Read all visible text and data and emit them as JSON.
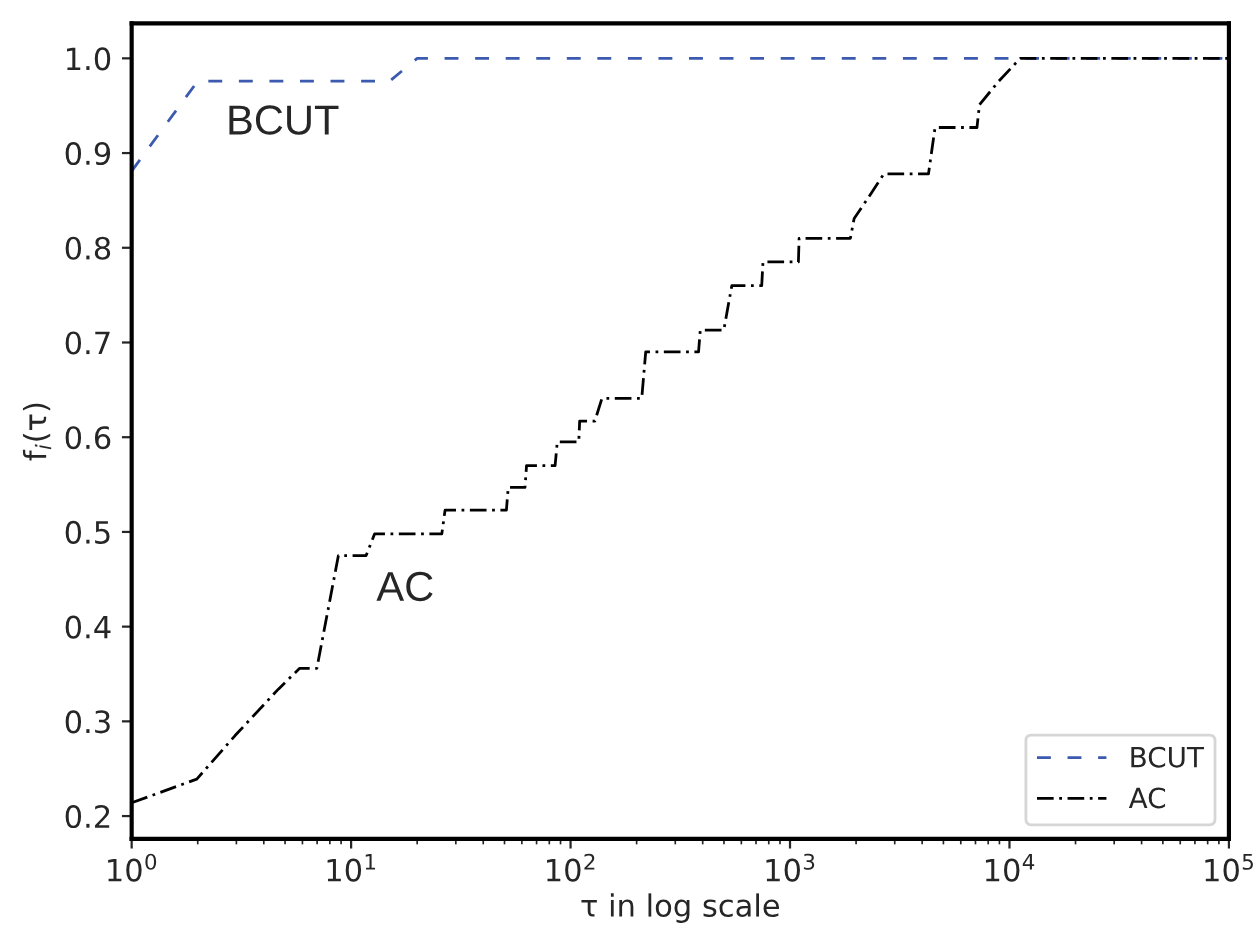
{
  "chart_data": {
    "type": "line",
    "xlabel": "τ in log scale",
    "ylabel": "f$_{i}$(τ)",
    "log": "x",
    "xlim": [
      1,
      100000
    ],
    "ylim": [
      0.176,
      1.037
    ],
    "xticks": [
      {
        "value": 1,
        "label": "10$^{0}$"
      },
      {
        "value": 10,
        "label": "10$^{1}$"
      },
      {
        "value": 100,
        "label": "10$^{2}$"
      },
      {
        "value": 1000,
        "label": "10$^{3}$"
      },
      {
        "value": 10000,
        "label": "10$^{4}$"
      },
      {
        "value": 100000,
        "label": "10$^{5}$"
      }
    ],
    "yticks": [
      0.2,
      0.3,
      0.4,
      0.5,
      0.6,
      0.7,
      0.8,
      0.9,
      {
        "value": 1,
        "label": "1.0"
      }
    ],
    "legend": "bottom right",
    "grid": false,
    "marker": "none",
    "series": [
      {
        "name": "BCUT",
        "color": "#3b5ab0",
        "line_style": "dashed",
        "x": [
          1,
          2,
          15,
          20,
          100000
        ],
        "values": [
          0.881,
          0.976,
          0.976,
          1.0,
          1.0
        ]
      },
      {
        "name": "AC",
        "color": "#000000",
        "line_style": "dashdot",
        "x": [
          1,
          1.98,
          2.96,
          4.66,
          5.83,
          6.98,
          8.75,
          11.7,
          12.8,
          25.9,
          26.8,
          51,
          52,
          62,
          63,
          85,
          87,
          109,
          110,
          129,
          139,
          211,
          220,
          383,
          390,
          499,
          543,
          743,
          753,
          1092,
          1100,
          1884,
          1960,
          2260,
          2677,
          4275,
          4580,
          7110,
          7300,
          8870,
          11200,
          100000
        ],
        "values": [
          0.214,
          0.239,
          0.285,
          0.334,
          0.356,
          0.356,
          0.475,
          0.475,
          0.498,
          0.498,
          0.523,
          0.523,
          0.547,
          0.547,
          0.57,
          0.57,
          0.595,
          0.595,
          0.617,
          0.617,
          0.641,
          0.641,
          0.69,
          0.69,
          0.713,
          0.713,
          0.76,
          0.76,
          0.785,
          0.785,
          0.81,
          0.81,
          0.831,
          0.852,
          0.878,
          0.878,
          0.927,
          0.927,
          0.951,
          0.975,
          1.0,
          1.0
        ]
      }
    ],
    "annotations": [
      "BCUT",
      "AC"
    ]
  }
}
